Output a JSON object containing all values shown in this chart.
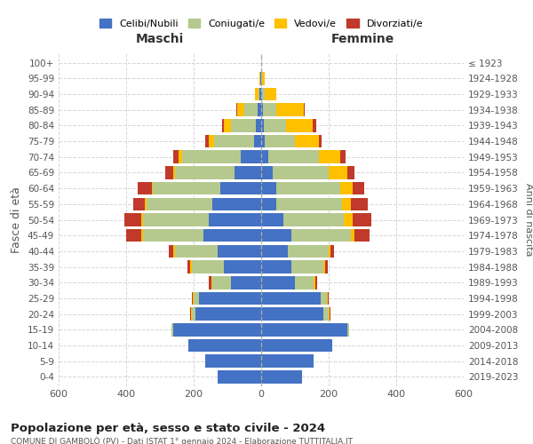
{
  "age_groups": [
    "0-4",
    "5-9",
    "10-14",
    "15-19",
    "20-24",
    "25-29",
    "30-34",
    "35-39",
    "40-44",
    "45-49",
    "50-54",
    "55-59",
    "60-64",
    "65-69",
    "70-74",
    "75-79",
    "80-84",
    "85-89",
    "90-94",
    "95-99",
    "100+"
  ],
  "birth_years": [
    "2019-2023",
    "2014-2018",
    "2009-2013",
    "2004-2008",
    "1999-2003",
    "1994-1998",
    "1989-1993",
    "1984-1988",
    "1979-1983",
    "1974-1978",
    "1969-1973",
    "1964-1968",
    "1959-1963",
    "1954-1958",
    "1949-1953",
    "1944-1948",
    "1939-1943",
    "1934-1938",
    "1929-1933",
    "1924-1928",
    "≤ 1923"
  ],
  "maschi": {
    "celibi": [
      130,
      165,
      215,
      260,
      195,
      185,
      90,
      110,
      130,
      170,
      155,
      145,
      120,
      80,
      60,
      20,
      15,
      10,
      4,
      2,
      0
    ],
    "coniugati": [
      0,
      0,
      0,
      5,
      10,
      15,
      55,
      95,
      125,
      180,
      195,
      195,
      200,
      175,
      175,
      120,
      75,
      40,
      5,
      0,
      0
    ],
    "vedovi": [
      0,
      0,
      0,
      0,
      3,
      3,
      3,
      5,
      5,
      5,
      5,
      5,
      5,
      5,
      10,
      15,
      20,
      20,
      10,
      3,
      0
    ],
    "divorziati": [
      0,
      0,
      0,
      0,
      3,
      3,
      8,
      8,
      15,
      45,
      50,
      35,
      40,
      25,
      15,
      10,
      5,
      5,
      0,
      0,
      0
    ]
  },
  "femmine": {
    "nubili": [
      120,
      155,
      210,
      255,
      185,
      175,
      100,
      90,
      80,
      90,
      65,
      45,
      45,
      35,
      20,
      10,
      8,
      5,
      3,
      0,
      0
    ],
    "coniugate": [
      0,
      0,
      0,
      5,
      15,
      20,
      55,
      95,
      120,
      175,
      180,
      195,
      190,
      165,
      150,
      90,
      65,
      40,
      8,
      3,
      0
    ],
    "vedove": [
      0,
      0,
      0,
      0,
      3,
      3,
      5,
      5,
      5,
      10,
      25,
      25,
      35,
      55,
      65,
      70,
      80,
      80,
      35,
      8,
      0
    ],
    "divorziate": [
      0,
      0,
      0,
      0,
      3,
      3,
      5,
      8,
      10,
      45,
      55,
      50,
      35,
      20,
      15,
      10,
      10,
      5,
      0,
      0,
      0
    ]
  },
  "colors": {
    "celibi": "#4472c4",
    "coniugati": "#b5c98e",
    "vedovi": "#ffc000",
    "divorziati": "#c0392b"
  },
  "xlim": 600,
  "title": "Popolazione per età, sesso e stato civile - 2024",
  "subtitle": "COMUNE DI GAMBOLÒ (PV) - Dati ISTAT 1° gennaio 2024 - Elaborazione TUTTITALIA.IT",
  "ylabel_left": "Fasce di età",
  "ylabel_right": "Anni di nascita",
  "xlabel_maschi": "Maschi",
  "xlabel_femmine": "Femmine",
  "legend_labels": [
    "Celibi/Nubili",
    "Coniugati/e",
    "Vedovi/e",
    "Divorziati/e"
  ],
  "background_color": "#ffffff",
  "grid_color": "#cccccc"
}
